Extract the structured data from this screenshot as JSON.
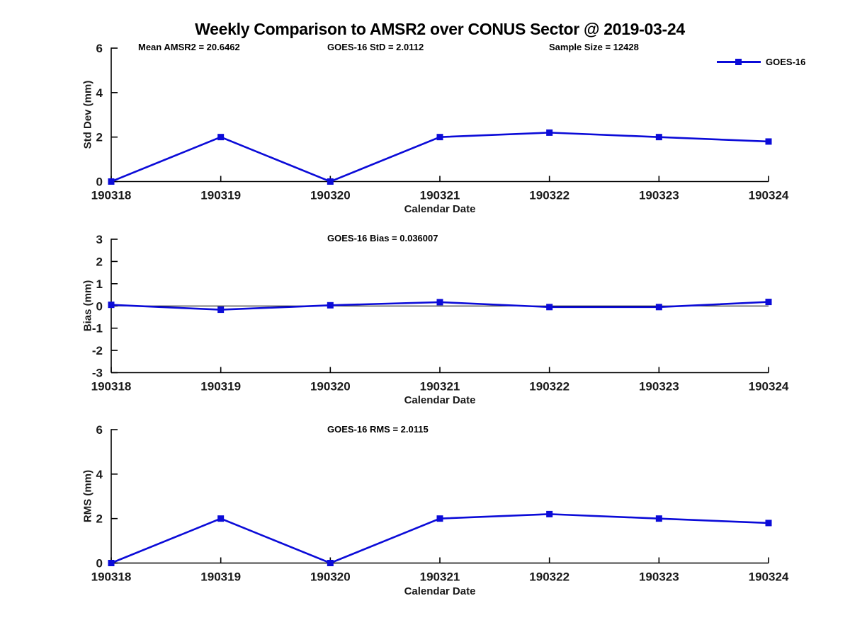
{
  "title": "Weekly Comparison to AMSR2 over CONUS Sector @ 2019-03-24",
  "legend": {
    "label": "GOES-16"
  },
  "colors": {
    "line": "#0b0bd8",
    "axis": "#000000",
    "tick_text": "#1a1a1a"
  },
  "chart_data": [
    {
      "type": "line",
      "name": "std-dev",
      "annotations": [
        "Mean AMSR2 = 20.6462",
        "GOES-16 StD = 2.0112",
        "Sample Size = 12428"
      ],
      "ylabel": "Std Dev (mm)",
      "xlabel": "Calendar Date",
      "x": [
        "190318",
        "190319",
        "190320",
        "190321",
        "190322",
        "190323",
        "190324"
      ],
      "series": [
        {
          "name": "GOES-16",
          "values": [
            0,
            2,
            0,
            2,
            2.2,
            2,
            1.8
          ]
        }
      ],
      "ylim": [
        0,
        6
      ],
      "yticks": [
        0,
        2,
        4,
        6
      ],
      "zero_line": false,
      "legend_position": "top-right",
      "grid": false
    },
    {
      "type": "line",
      "name": "bias",
      "annotations": [
        "GOES-16 Bias  = 0.036007"
      ],
      "ylabel": "Bias (mm)",
      "xlabel": "Calendar Date",
      "x": [
        "190318",
        "190319",
        "190320",
        "190321",
        "190322",
        "190323",
        "190324"
      ],
      "series": [
        {
          "name": "GOES-16",
          "values": [
            0.05,
            -0.17,
            0.03,
            0.17,
            -0.05,
            -0.05,
            0.18
          ]
        }
      ],
      "ylim": [
        -3,
        3
      ],
      "yticks": [
        -3,
        -2,
        -1,
        0,
        1,
        2,
        3
      ],
      "zero_line": true,
      "grid": false
    },
    {
      "type": "line",
      "name": "rms",
      "annotations": [
        "GOES-16 RMS = 2.0115"
      ],
      "ylabel": "RMS (mm)",
      "xlabel": "Calendar Date",
      "x": [
        "190318",
        "190319",
        "190320",
        "190321",
        "190322",
        "190323",
        "190324"
      ],
      "series": [
        {
          "name": "GOES-16",
          "values": [
            0,
            2,
            0,
            2,
            2.2,
            2,
            1.8
          ]
        }
      ],
      "ylim": [
        0,
        6
      ],
      "yticks": [
        0,
        2,
        4,
        6
      ],
      "zero_line": false,
      "grid": false
    }
  ]
}
